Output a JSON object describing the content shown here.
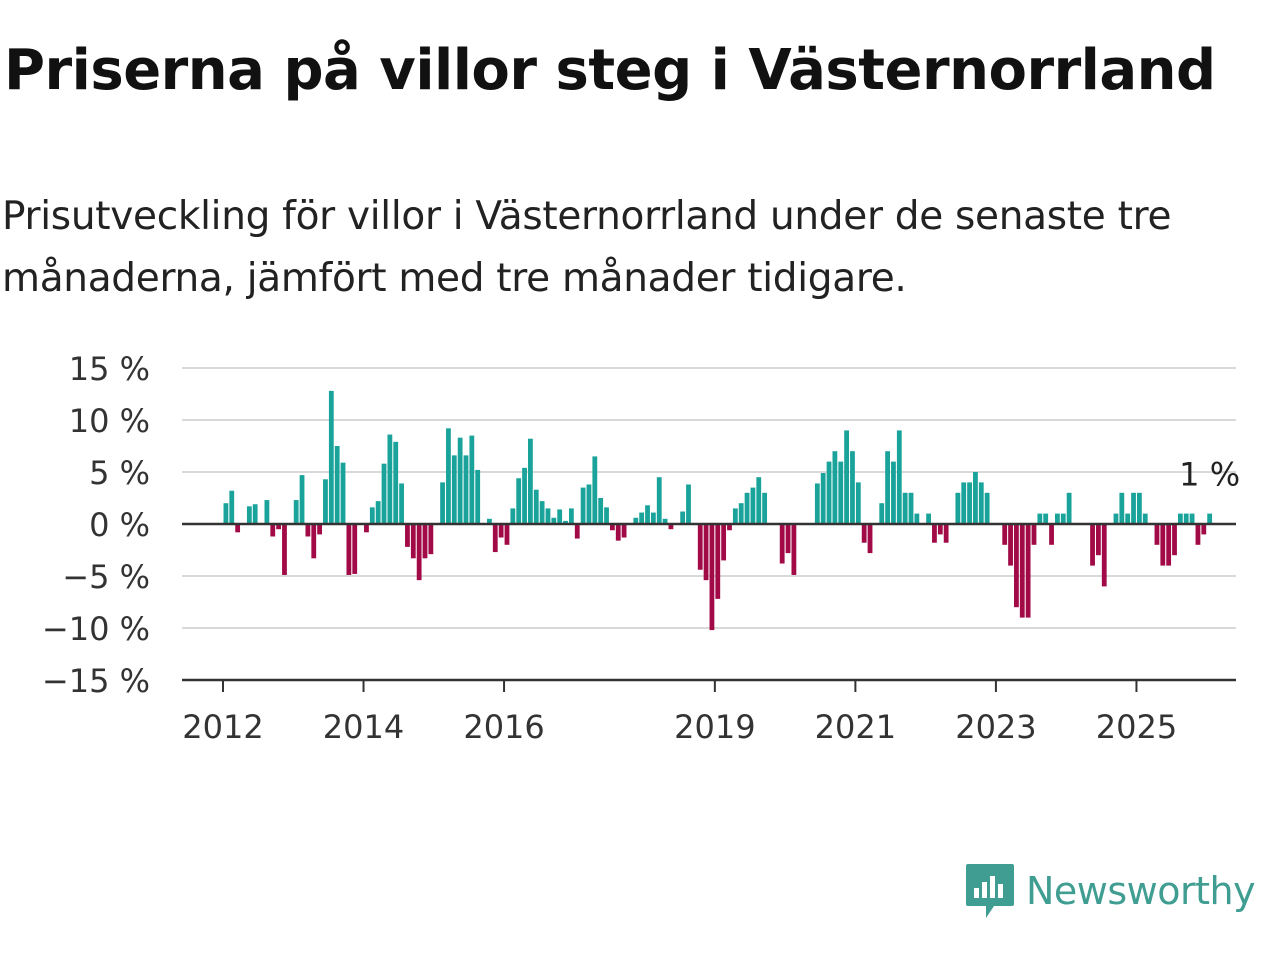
{
  "header": {
    "title": "Priserna på villor steg i Västernorrland",
    "subtitle": "Prisutveckling för villor i Västernorrland under de senaste tre månaderna, jämfört med tre månader tidigare."
  },
  "brand": {
    "name": "Newsworthy",
    "icon": "newsworthy-logo-icon",
    "color": "#3f9d92"
  },
  "chart_data": {
    "type": "bar",
    "title": "Priserna på villor steg i Västernorrland",
    "subtitle": "Prisutveckling för villor i Västernorrland under de senaste tre månaderna, jämfört med tre månader tidigare.",
    "ylim": [
      -15,
      15
    ],
    "y_ticks": [
      15,
      10,
      5,
      0,
      -5,
      -10,
      -15
    ],
    "y_tick_labels": [
      "15 %",
      "10 %",
      "5 %",
      "0 %",
      "−5 %",
      "−10 %",
      "−15 %"
    ],
    "x_tick_years": [
      2012,
      2014,
      2016,
      2019,
      2021,
      2023,
      2025
    ],
    "x_tick_labels": [
      "2012",
      "2014",
      "2016",
      "2019",
      "2021",
      "2023",
      "2025"
    ],
    "x_range": [
      "2011-06",
      "2026-06"
    ],
    "grid": true,
    "positive_color": "#1aa39a",
    "negative_color": "#a10a47",
    "last_value_label": "1 %",
    "start_month": "2012-01",
    "values": [
      2,
      3.2,
      -0.8,
      0,
      1.7,
      1.9,
      0,
      2.3,
      -1.2,
      -0.5,
      -4.9,
      0,
      2.3,
      4.7,
      -1.2,
      -3.3,
      -1,
      4.3,
      12.8,
      7.5,
      5.9,
      -4.9,
      -4.8,
      0,
      -0.8,
      1.6,
      2.2,
      5.8,
      8.6,
      7.9,
      3.9,
      -2.2,
      -3.3,
      -5.4,
      -3.3,
      -2.9,
      0,
      4,
      9.2,
      6.6,
      8.3,
      6.6,
      8.5,
      5.2,
      0,
      0.5,
      -2.7,
      -1.3,
      -2,
      1.5,
      4.4,
      5.4,
      8.2,
      3.3,
      2.2,
      1.5,
      0.6,
      1.4,
      0.3,
      1.5,
      -1.4,
      3.5,
      3.8,
      6.5,
      2.5,
      1.6,
      -0.6,
      -1.6,
      -1.3,
      0,
      0.6,
      1.1,
      1.8,
      1.1,
      4.5,
      0.5,
      -0.5,
      0,
      1.2,
      3.8,
      0,
      -4.4,
      -5.4,
      -10.2,
      -7.2,
      -3.5,
      -0.6,
      1.5,
      2,
      3,
      3.5,
      4.5,
      3,
      0,
      0,
      -3.8,
      -2.8,
      -4.9,
      0,
      0,
      0,
      3.9,
      4.9,
      6,
      7,
      6,
      9,
      7,
      4,
      -1.8,
      -2.8,
      0,
      2,
      7,
      6,
      9,
      3,
      3,
      1,
      0,
      1,
      -1.8,
      -1,
      -1.8,
      0,
      3,
      4,
      4,
      5,
      4,
      3,
      0,
      0,
      -2,
      -4,
      -8,
      -9,
      -9,
      -2,
      1,
      1,
      -2,
      1,
      1,
      3,
      0,
      0,
      0,
      -4,
      -3,
      -6,
      0,
      1,
      3,
      1,
      3,
      3,
      1,
      0,
      -2,
      -4,
      -4,
      -3,
      1,
      1,
      1,
      -2,
      -1,
      1
    ]
  }
}
